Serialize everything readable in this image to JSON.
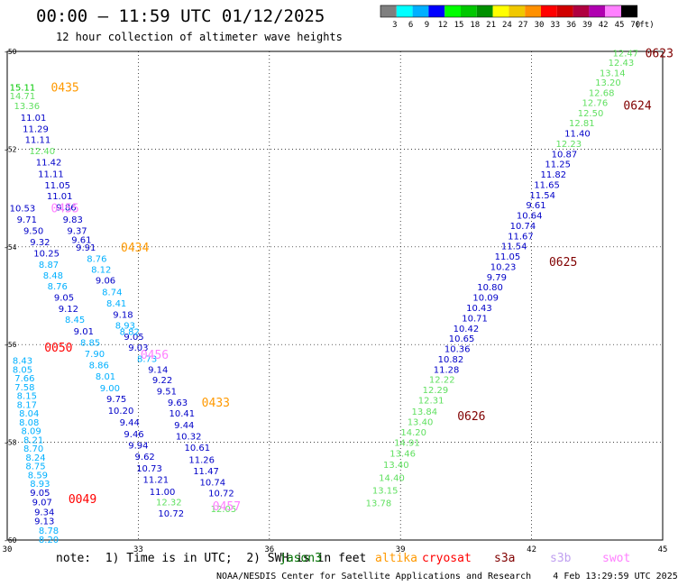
{
  "header": {
    "title": "00:00 – 11:59 UTC 01/12/2025",
    "subtitle": "12 hour collection of altimeter wave heights"
  },
  "colorbar": {
    "labels": [
      "3",
      "6",
      "9",
      "12",
      "15",
      "18",
      "21",
      "24",
      "27",
      "30",
      "33",
      "36",
      "39",
      "42",
      "45",
      "70"
    ],
    "unit": "(ft)",
    "colors": [
      "#7f7f7f",
      "#00ffff",
      "#00b0ff",
      "#0000ff",
      "#00ff00",
      "#00c800",
      "#009000",
      "#ffff00",
      "#f0c800",
      "#ff9000",
      "#ff0000",
      "#d00000",
      "#b00040",
      "#b000b0",
      "#ff80ff",
      "#000000"
    ]
  },
  "footer": {
    "note": "note:  1) Time is in UTC;  2) SWH is in feet",
    "credit": "NOAA/NESDIS Center for Satellite Applications and Research    4 Feb 13:29:59 UTC 2025",
    "satellites": [
      {
        "name": "jason3",
        "color": "#007000"
      },
      {
        "name": "altika",
        "color": "#ff9900"
      },
      {
        "name": "cryosat",
        "color": "#ff0000"
      },
      {
        "name": "s3a",
        "color": "#800000"
      },
      {
        "name": "s3b",
        "color": "#c0a0f0"
      },
      {
        "name": "swot",
        "color": "#ff80ff"
      }
    ]
  },
  "chart_data": {
    "type": "scatter",
    "xlim": [
      30,
      45
    ],
    "ylim": [
      -60,
      -50
    ],
    "xticks": [
      30,
      33,
      36,
      39,
      42,
      45
    ],
    "yticks": [
      -50,
      -52,
      -54,
      -56,
      -58,
      -60
    ],
    "grid": true,
    "series": [
      {
        "name": "tracks",
        "points": [
          {
            "x": 30.35,
            "y": -50.73,
            "v": "15.11",
            "c": "#00c800"
          },
          {
            "x": 30.35,
            "y": -50.9,
            "v": "14.71",
            "c": "#60e060"
          },
          {
            "x": 30.45,
            "y": -51.11,
            "v": "13.36",
            "c": "#60e060"
          },
          {
            "x": 30.6,
            "y": -51.35,
            "v": "11.01",
            "c": "#0000c8"
          },
          {
            "x": 30.65,
            "y": -51.58,
            "v": "11.29",
            "c": "#0000c8"
          },
          {
            "x": 30.7,
            "y": -51.8,
            "v": "11.11",
            "c": "#0000c8"
          },
          {
            "x": 30.8,
            "y": -52.03,
            "v": "12.40",
            "c": "#60e060"
          },
          {
            "x": 30.95,
            "y": -52.26,
            "v": "11.42",
            "c": "#0000c8"
          },
          {
            "x": 31.0,
            "y": -52.5,
            "v": "11.11",
            "c": "#0000c8"
          },
          {
            "x": 31.15,
            "y": -52.73,
            "v": "11.05",
            "c": "#0000c8"
          },
          {
            "x": 31.2,
            "y": -52.95,
            "v": "11.01",
            "c": "#0000c8"
          },
          {
            "x": 31.35,
            "y": -53.18,
            "v": "9.86",
            "c": "#0000c8"
          },
          {
            "x": 30.35,
            "y": -53.2,
            "v": "10.53",
            "c": "#0000c8"
          },
          {
            "x": 30.45,
            "y": -53.43,
            "v": "9.71",
            "c": "#0000c8"
          },
          {
            "x": 31.5,
            "y": -53.43,
            "v": "9.83",
            "c": "#0000c8"
          },
          {
            "x": 30.6,
            "y": -53.66,
            "v": "9.50",
            "c": "#0000c8"
          },
          {
            "x": 31.6,
            "y": -53.66,
            "v": "9.37",
            "c": "#0000c8"
          },
          {
            "x": 30.75,
            "y": -53.89,
            "v": "9.32",
            "c": "#0000c8"
          },
          {
            "x": 31.7,
            "y": -53.85,
            "v": "9.61",
            "c": "#0000c8"
          },
          {
            "x": 31.8,
            "y": -54.0,
            "v": "9.91",
            "c": "#0000c8"
          },
          {
            "x": 30.9,
            "y": -54.12,
            "v": "10.25",
            "c": "#0000c8"
          },
          {
            "x": 32.05,
            "y": -54.23,
            "v": "8.76",
            "c": "#00b0ff"
          },
          {
            "x": 30.95,
            "y": -54.35,
            "v": "8.87",
            "c": "#00b0ff"
          },
          {
            "x": 32.15,
            "y": -54.46,
            "v": "8.12",
            "c": "#00b0ff"
          },
          {
            "x": 31.05,
            "y": -54.58,
            "v": "8.48",
            "c": "#00b0ff"
          },
          {
            "x": 32.25,
            "y": -54.68,
            "v": "9.06",
            "c": "#0000c8"
          },
          {
            "x": 31.15,
            "y": -54.8,
            "v": "8.76",
            "c": "#00b0ff"
          },
          {
            "x": 32.4,
            "y": -54.92,
            "v": "8.74",
            "c": "#00b0ff"
          },
          {
            "x": 31.3,
            "y": -55.03,
            "v": "9.05",
            "c": "#0000c8"
          },
          {
            "x": 32.5,
            "y": -55.15,
            "v": "8.41",
            "c": "#00b0ff"
          },
          {
            "x": 31.4,
            "y": -55.26,
            "v": "9.12",
            "c": "#0000c8"
          },
          {
            "x": 32.65,
            "y": -55.38,
            "v": "9.18",
            "c": "#0000c8"
          },
          {
            "x": 31.55,
            "y": -55.48,
            "v": "8.45",
            "c": "#00b0ff"
          },
          {
            "x": 32.7,
            "y": -55.6,
            "v": "8.93",
            "c": "#00b0ff"
          },
          {
            "x": 31.75,
            "y": -55.72,
            "v": "9.01",
            "c": "#0000c8"
          },
          {
            "x": 32.9,
            "y": -55.83,
            "v": "9.05",
            "c": "#0000c8"
          },
          {
            "x": 31.9,
            "y": -55.95,
            "v": "8.85",
            "c": "#00b0ff"
          },
          {
            "x": 32.8,
            "y": -55.73,
            "v": "8.82",
            "c": "#00b0ff"
          },
          {
            "x": 32.0,
            "y": -56.18,
            "v": "7.90",
            "c": "#00b0ff"
          },
          {
            "x": 33.0,
            "y": -56.05,
            "v": "9.03",
            "c": "#0000c8"
          },
          {
            "x": 33.2,
            "y": -56.28,
            "v": "8.73",
            "c": "#00b0ff"
          },
          {
            "x": 32.1,
            "y": -56.41,
            "v": "8.86",
            "c": "#00b0ff"
          },
          {
            "x": 33.45,
            "y": -56.5,
            "v": "9.14",
            "c": "#0000c8"
          },
          {
            "x": 32.25,
            "y": -56.64,
            "v": "8.01",
            "c": "#00b0ff"
          },
          {
            "x": 33.55,
            "y": -56.72,
            "v": "9.22",
            "c": "#0000c8"
          },
          {
            "x": 32.35,
            "y": -56.88,
            "v": "9.00",
            "c": "#00b0ff"
          },
          {
            "x": 33.65,
            "y": -56.95,
            "v": "9.51",
            "c": "#0000c8"
          },
          {
            "x": 32.5,
            "y": -57.1,
            "v": "9.75",
            "c": "#0000c8"
          },
          {
            "x": 33.9,
            "y": -57.18,
            "v": "9.63",
            "c": "#0000c8"
          },
          {
            "x": 32.6,
            "y": -57.34,
            "v": "10.20",
            "c": "#0000c8"
          },
          {
            "x": 34.0,
            "y": -57.4,
            "v": "10.41",
            "c": "#0000c8"
          },
          {
            "x": 32.8,
            "y": -57.58,
            "v": "9.44",
            "c": "#0000c8"
          },
          {
            "x": 34.05,
            "y": -57.64,
            "v": "9.44",
            "c": "#0000c8"
          },
          {
            "x": 32.9,
            "y": -57.82,
            "v": "9.46",
            "c": "#0000c8"
          },
          {
            "x": 34.15,
            "y": -57.87,
            "v": "10.32",
            "c": "#0000c8"
          },
          {
            "x": 33.0,
            "y": -58.05,
            "v": "9.94",
            "c": "#0000c8"
          },
          {
            "x": 34.35,
            "y": -58.1,
            "v": "10.61",
            "c": "#0000c8"
          },
          {
            "x": 33.15,
            "y": -58.28,
            "v": "9.62",
            "c": "#0000c8"
          },
          {
            "x": 34.45,
            "y": -58.35,
            "v": "11.26",
            "c": "#0000c8"
          },
          {
            "x": 33.25,
            "y": -58.52,
            "v": "10.73",
            "c": "#0000c8"
          },
          {
            "x": 34.55,
            "y": -58.58,
            "v": "11.47",
            "c": "#0000c8"
          },
          {
            "x": 33.4,
            "y": -58.75,
            "v": "11.21",
            "c": "#0000c8"
          },
          {
            "x": 34.7,
            "y": -58.81,
            "v": "10.74",
            "c": "#0000c8"
          },
          {
            "x": 33.55,
            "y": -59.0,
            "v": "11.00",
            "c": "#0000c8"
          },
          {
            "x": 34.9,
            "y": -59.03,
            "v": "10.72",
            "c": "#0000c8"
          },
          {
            "x": 33.7,
            "y": -59.22,
            "v": "12.32",
            "c": "#60e060"
          },
          {
            "x": 33.75,
            "y": -59.45,
            "v": "10.72",
            "c": "#0000c8"
          },
          {
            "x": 34.95,
            "y": -59.35,
            "v": "12.05",
            "c": "#60e060"
          },
          {
            "x": 30.35,
            "y": -56.32,
            "v": "8.43",
            "c": "#00b0ff"
          },
          {
            "x": 30.35,
            "y": -56.5,
            "v": "8.05",
            "c": "#00b0ff"
          },
          {
            "x": 30.4,
            "y": -56.68,
            "v": "7.66",
            "c": "#00b0ff"
          },
          {
            "x": 30.4,
            "y": -56.86,
            "v": "7.58",
            "c": "#00b0ff"
          },
          {
            "x": 30.45,
            "y": -57.04,
            "v": "8.15",
            "c": "#00b0ff"
          },
          {
            "x": 30.45,
            "y": -57.22,
            "v": "8.17",
            "c": "#00b0ff"
          },
          {
            "x": 30.5,
            "y": -57.4,
            "v": "8.04",
            "c": "#00b0ff"
          },
          {
            "x": 30.5,
            "y": -57.58,
            "v": "8.08",
            "c": "#00b0ff"
          },
          {
            "x": 30.55,
            "y": -57.76,
            "v": "8.09",
            "c": "#00b0ff"
          },
          {
            "x": 30.6,
            "y": -57.94,
            "v": "8.21",
            "c": "#00b0ff"
          },
          {
            "x": 30.6,
            "y": -58.12,
            "v": "8.70",
            "c": "#00b0ff"
          },
          {
            "x": 30.65,
            "y": -58.3,
            "v": "8.24",
            "c": "#00b0ff"
          },
          {
            "x": 30.65,
            "y": -58.48,
            "v": "8.75",
            "c": "#00b0ff"
          },
          {
            "x": 30.7,
            "y": -58.66,
            "v": "8.59",
            "c": "#00b0ff"
          },
          {
            "x": 30.75,
            "y": -58.84,
            "v": "8.93",
            "c": "#00b0ff"
          },
          {
            "x": 30.75,
            "y": -59.02,
            "v": "9.05",
            "c": "#0000c8"
          },
          {
            "x": 30.8,
            "y": -59.22,
            "v": "9.07",
            "c": "#0000c8"
          },
          {
            "x": 30.85,
            "y": -59.42,
            "v": "9.34",
            "c": "#0000c8"
          },
          {
            "x": 30.85,
            "y": -59.6,
            "v": "9.13",
            "c": "#0000c8"
          },
          {
            "x": 30.95,
            "y": -59.8,
            "v": "8.78",
            "c": "#00b0ff"
          },
          {
            "x": 30.95,
            "y": -59.98,
            "v": "8.20",
            "c": "#00b0ff"
          },
          {
            "x": 44.15,
            "y": -50.03,
            "v": "12.47",
            "c": "#60e060"
          },
          {
            "x": 44.05,
            "y": -50.22,
            "v": "12.43",
            "c": "#60e060"
          },
          {
            "x": 43.85,
            "y": -50.43,
            "v": "13.14",
            "c": "#60e060"
          },
          {
            "x": 43.75,
            "y": -50.63,
            "v": "13.20",
            "c": "#60e060"
          },
          {
            "x": 43.6,
            "y": -50.84,
            "v": "12.68",
            "c": "#60e060"
          },
          {
            "x": 43.45,
            "y": -51.04,
            "v": "12.76",
            "c": "#60e060"
          },
          {
            "x": 43.35,
            "y": -51.25,
            "v": "12.50",
            "c": "#60e060"
          },
          {
            "x": 43.15,
            "y": -51.46,
            "v": "12.81",
            "c": "#60e060"
          },
          {
            "x": 43.05,
            "y": -51.67,
            "v": "11.40",
            "c": "#0000c8"
          },
          {
            "x": 42.85,
            "y": -51.88,
            "v": "12.23",
            "c": "#60e060"
          },
          {
            "x": 42.75,
            "y": -52.09,
            "v": "10.87",
            "c": "#0000c8"
          },
          {
            "x": 42.6,
            "y": -52.3,
            "v": "11.25",
            "c": "#0000c8"
          },
          {
            "x": 42.5,
            "y": -52.51,
            "v": "11.82",
            "c": "#0000c8"
          },
          {
            "x": 42.35,
            "y": -52.72,
            "v": "11.65",
            "c": "#0000c8"
          },
          {
            "x": 42.25,
            "y": -52.93,
            "v": "11.54",
            "c": "#0000c8"
          },
          {
            "x": 42.1,
            "y": -53.14,
            "v": "9.61",
            "c": "#0000c8"
          },
          {
            "x": 41.95,
            "y": -53.35,
            "v": "10.64",
            "c": "#0000c8"
          },
          {
            "x": 41.8,
            "y": -53.56,
            "v": "10.74",
            "c": "#0000c8"
          },
          {
            "x": 41.75,
            "y": -53.77,
            "v": "11.67",
            "c": "#0000c8"
          },
          {
            "x": 41.6,
            "y": -53.98,
            "v": "11.54",
            "c": "#0000c8"
          },
          {
            "x": 41.45,
            "y": -54.19,
            "v": "11.05",
            "c": "#0000c8"
          },
          {
            "x": 41.35,
            "y": -54.4,
            "v": "10.23",
            "c": "#0000c8"
          },
          {
            "x": 41.2,
            "y": -54.61,
            "v": "9.79",
            "c": "#0000c8"
          },
          {
            "x": 41.05,
            "y": -54.82,
            "v": "10.80",
            "c": "#0000c8"
          },
          {
            "x": 40.95,
            "y": -55.03,
            "v": "10.09",
            "c": "#0000c8"
          },
          {
            "x": 40.8,
            "y": -55.24,
            "v": "10.43",
            "c": "#0000c8"
          },
          {
            "x": 40.7,
            "y": -55.45,
            "v": "10.71",
            "c": "#0000c8"
          },
          {
            "x": 40.5,
            "y": -55.66,
            "v": "10.42",
            "c": "#0000c8"
          },
          {
            "x": 40.4,
            "y": -55.87,
            "v": "10.65",
            "c": "#0000c8"
          },
          {
            "x": 40.3,
            "y": -56.08,
            "v": "10.36",
            "c": "#0000c8"
          },
          {
            "x": 40.15,
            "y": -56.29,
            "v": "10.82",
            "c": "#0000c8"
          },
          {
            "x": 40.05,
            "y": -56.5,
            "v": "11.28",
            "c": "#0000c8"
          },
          {
            "x": 39.95,
            "y": -56.71,
            "v": "12.22",
            "c": "#60e060"
          },
          {
            "x": 39.8,
            "y": -56.92,
            "v": "12.29",
            "c": "#60e060"
          },
          {
            "x": 39.7,
            "y": -57.13,
            "v": "12.31",
            "c": "#60e060"
          },
          {
            "x": 39.55,
            "y": -57.36,
            "v": "13.84",
            "c": "#60e060"
          },
          {
            "x": 39.45,
            "y": -57.57,
            "v": "13.40",
            "c": "#60e060"
          },
          {
            "x": 39.3,
            "y": -57.79,
            "v": "14.20",
            "c": "#60e060"
          },
          {
            "x": 39.15,
            "y": -58.0,
            "v": "14.91",
            "c": "#60e060"
          },
          {
            "x": 39.05,
            "y": -58.22,
            "v": "13.46",
            "c": "#60e060"
          },
          {
            "x": 38.9,
            "y": -58.45,
            "v": "13.40",
            "c": "#60e060"
          },
          {
            "x": 38.8,
            "y": -58.72,
            "v": "14.40",
            "c": "#60e060"
          },
          {
            "x": 38.65,
            "y": -58.98,
            "v": "13.15",
            "c": "#60e060"
          },
          {
            "x": 38.5,
            "y": -59.23,
            "v": "13.78",
            "c": "#60e060"
          }
        ]
      }
    ],
    "track_labels": [
      {
        "x": 31.0,
        "y": -50.73,
        "text": "0435",
        "c": "#ff9900"
      },
      {
        "x": 31.0,
        "y": -53.2,
        "text": "0455",
        "c": "#ff80ff"
      },
      {
        "x": 32.6,
        "y": -54.0,
        "text": "0434",
        "c": "#ff9900"
      },
      {
        "x": 30.85,
        "y": -56.05,
        "text": "0050",
        "c": "#ff0000"
      },
      {
        "x": 33.05,
        "y": -56.2,
        "text": "0456",
        "c": "#ff80ff"
      },
      {
        "x": 34.45,
        "y": -57.18,
        "text": "0433",
        "c": "#ff9900"
      },
      {
        "x": 31.4,
        "y": -59.15,
        "text": "0049",
        "c": "#ff0000"
      },
      {
        "x": 34.7,
        "y": -59.3,
        "text": "0457",
        "c": "#ff80ff"
      },
      {
        "x": 44.6,
        "y": -50.03,
        "text": "0623",
        "c": "#800000"
      },
      {
        "x": 44.1,
        "y": -51.1,
        "text": "0624",
        "c": "#800000"
      },
      {
        "x": 42.4,
        "y": -54.3,
        "text": "0625",
        "c": "#800000"
      },
      {
        "x": 40.3,
        "y": -57.45,
        "text": "0626",
        "c": "#800000"
      }
    ]
  }
}
